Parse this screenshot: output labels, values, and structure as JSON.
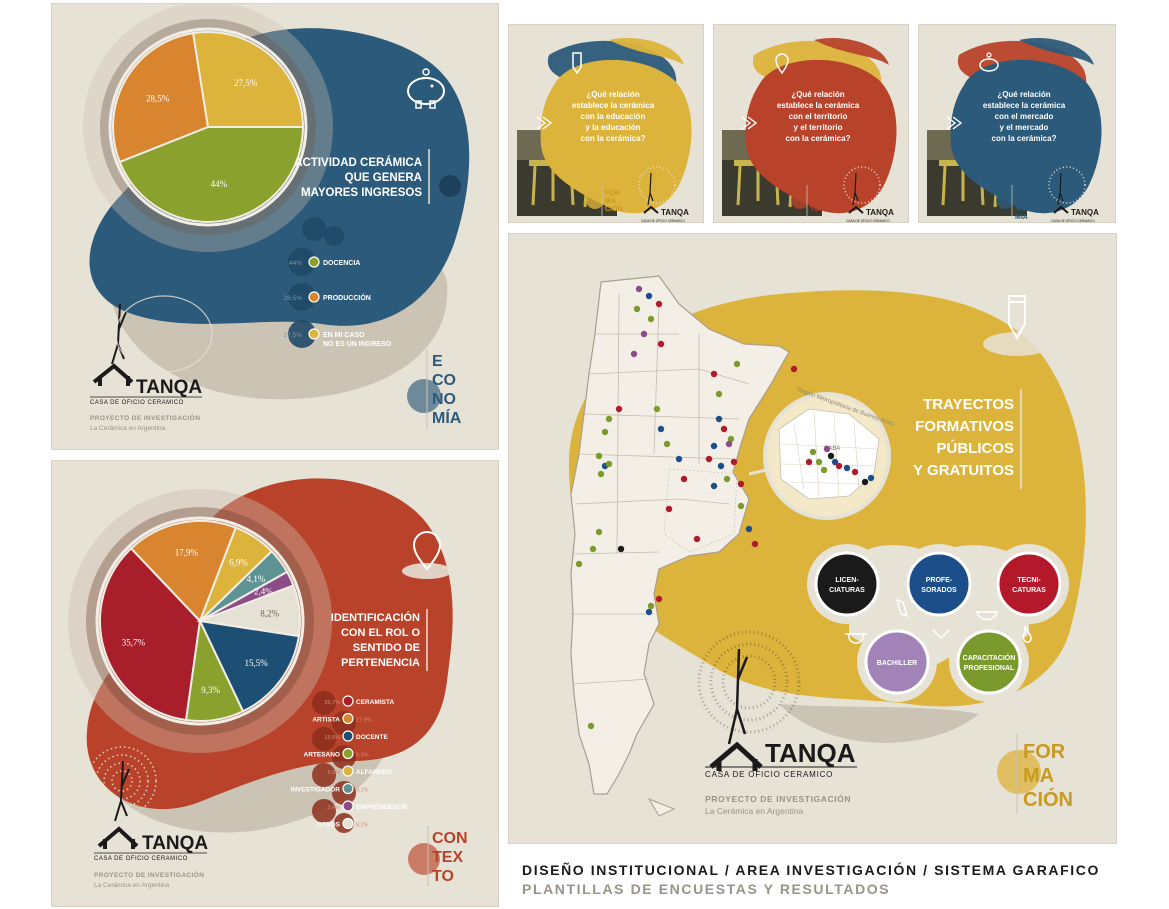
{
  "brand": {
    "name": "TANQA",
    "tagline": "CASA DE OFICIO CERAMICO",
    "project": "PROYECTO DE INVESTIGACIÓN",
    "project_sub": "La Cerámica en Argentina"
  },
  "colors": {
    "economia": "#2c5a7a",
    "contexto": "#b8432a",
    "formacion": "#dcb33b",
    "background": "#e7e2d6"
  },
  "economia": {
    "title": [
      "ACTIVIDAD CERÁMICA",
      "QUE GENERA",
      "MAYORES INGRESOS"
    ],
    "tag": [
      "E",
      "CO",
      "NO",
      "MÍA"
    ],
    "icon": "piggy-bank-icon",
    "chart_data": {
      "type": "pie",
      "slices": [
        {
          "label": "DOCENCIA",
          "value": 44,
          "text": "44%",
          "color": "#8aa12d"
        },
        {
          "label": "PRODUCCIÓN",
          "value": 28.5,
          "text": "28,5%",
          "color": "#d9842f"
        },
        {
          "label": "EN MI CASO NO ES UN INGRESO",
          "value": 27.5,
          "text": "27,5%",
          "color": "#dcb33b"
        }
      ]
    },
    "legend": [
      {
        "pct": "44%",
        "label": [
          "DOCENCIA"
        ],
        "color": "#8aa12d"
      },
      {
        "pct": "28,5%",
        "label": [
          "PRODUCCIÓN"
        ],
        "color": "#d9842f"
      },
      {
        "pct": "27,5%",
        "label": [
          "EN MI CASO",
          "NO ES UN INGRESO"
        ],
        "color": "#dcb33b"
      }
    ]
  },
  "contexto": {
    "title": [
      "IDENTIFICACIÓN",
      "CON EL ROL O",
      "SENTIDO DE",
      "PERTENENCIA"
    ],
    "tag": [
      "CON",
      "TEX",
      "TO"
    ],
    "icon": "location-pin-icon",
    "chart_data": {
      "type": "pie",
      "slices": [
        {
          "label": "CERAMISTA",
          "value": 35.7,
          "text": "35,7%",
          "color": "#a81e2b"
        },
        {
          "label": "ARTISTA",
          "value": 17.9,
          "text": "17,9%",
          "color": "#d9842f"
        },
        {
          "label": "ALFARERO",
          "value": 6.9,
          "text": "6,9%",
          "color": "#dcb33b"
        },
        {
          "label": "INVESTIGADOR",
          "value": 4.1,
          "text": "4,1%",
          "color": "#5e9394"
        },
        {
          "label": "EMPRENDEDOR",
          "value": 2.4,
          "text": "2,4%",
          "color": "#8b4c88"
        },
        {
          "label": "OTROS",
          "value": 8.2,
          "text": "8,2%",
          "color": "#e6e1d5"
        },
        {
          "label": "DOCENTE",
          "value": 15.5,
          "text": "15,5%",
          "color": "#1d4f75"
        },
        {
          "label": "ARTESANO",
          "value": 9.3,
          "text": "9,3%",
          "color": "#8aa12d"
        }
      ]
    },
    "legend": [
      {
        "label": "CERAMISTA",
        "pct": "35,7%",
        "color": "#a81e2b",
        "side": "right"
      },
      {
        "label": "ARTISTA",
        "pct": "17,9%",
        "color": "#d9842f",
        "side": "left"
      },
      {
        "label": "DOCENTE",
        "pct": "15,5%",
        "color": "#1d4f75",
        "side": "right"
      },
      {
        "label": "ARTESANO",
        "pct": "9,3%",
        "color": "#8aa12d",
        "side": "left"
      },
      {
        "label": "ALFARERO",
        "pct": "6,9%",
        "color": "#dcb33b",
        "side": "right"
      },
      {
        "label": "INVESTIGADOR",
        "pct": "4,1%",
        "color": "#5e9394",
        "side": "left"
      },
      {
        "label": "EMPRENDEDOR",
        "pct": "2,4%",
        "color": "#8b4c88",
        "side": "right"
      },
      {
        "label": "OTROS",
        "pct": "8,2%",
        "color": "#e6e1d5",
        "side": "left"
      }
    ]
  },
  "questions": [
    {
      "lines": [
        "¿Qué relación",
        "establece la cerámica",
        "con la educación",
        "y la educación",
        "con la cerámica?"
      ],
      "tag": [
        "FOR",
        "MA",
        "CIÓN"
      ],
      "color": "#dcb33b",
      "tag_color": "#c99a1e",
      "icon": "pencil-icon"
    },
    {
      "lines": [
        "¿Qué relación",
        "establece  la cerámica",
        "con el territorio",
        "y el territorio",
        "con la cerámica?"
      ],
      "tag": [
        "CON",
        "TEX",
        "TO"
      ],
      "color": "#b8432a",
      "tag_color": "#b8432a",
      "icon": "location-pin-icon"
    },
    {
      "lines": [
        "¿Qué relación",
        "establece la cerámica",
        "con el mercado",
        "y el mercado",
        "con la cerámica?"
      ],
      "tag": [
        "E",
        "CO",
        "NO",
        "MÍA"
      ],
      "color": "#2c5a7a",
      "tag_color": "#2c5a7a",
      "icon": "piggy-bank-icon"
    }
  ],
  "formacion": {
    "title": [
      "TRAYECTOS",
      "FORMATIVOS",
      "PÚBLICOS",
      "Y GRATUITOS"
    ],
    "region_label": "Región Metropolitana de Buenos Aires",
    "caba": "CABA",
    "tag": [
      "FOR",
      "MA",
      "CIÓN"
    ],
    "icon": "pencil-icon",
    "categories": [
      {
        "lines": [
          "LICEN-",
          "CIATURAS"
        ],
        "color": "#1a1a1a"
      },
      {
        "lines": [
          "PROFE-",
          "SORADOS"
        ],
        "color": "#1c4f8a"
      },
      {
        "lines": [
          "TECNI-",
          "CATURAS"
        ],
        "color": "#b3192b"
      },
      {
        "lines": [
          "BACHILLER"
        ],
        "color": "#a283b8"
      },
      {
        "lines": [
          "CAPACITACIÓN",
          "PROFESIONAL"
        ],
        "color": "#7a9a2e"
      }
    ]
  },
  "footer": {
    "line1": "DISEÑO INSTITUCIONAL / AREA INVESTIGACIÓN / SISTEMA GARAFICO",
    "line2": "PLANTILLAS DE ENCUESTAS Y RESULTADOS"
  }
}
